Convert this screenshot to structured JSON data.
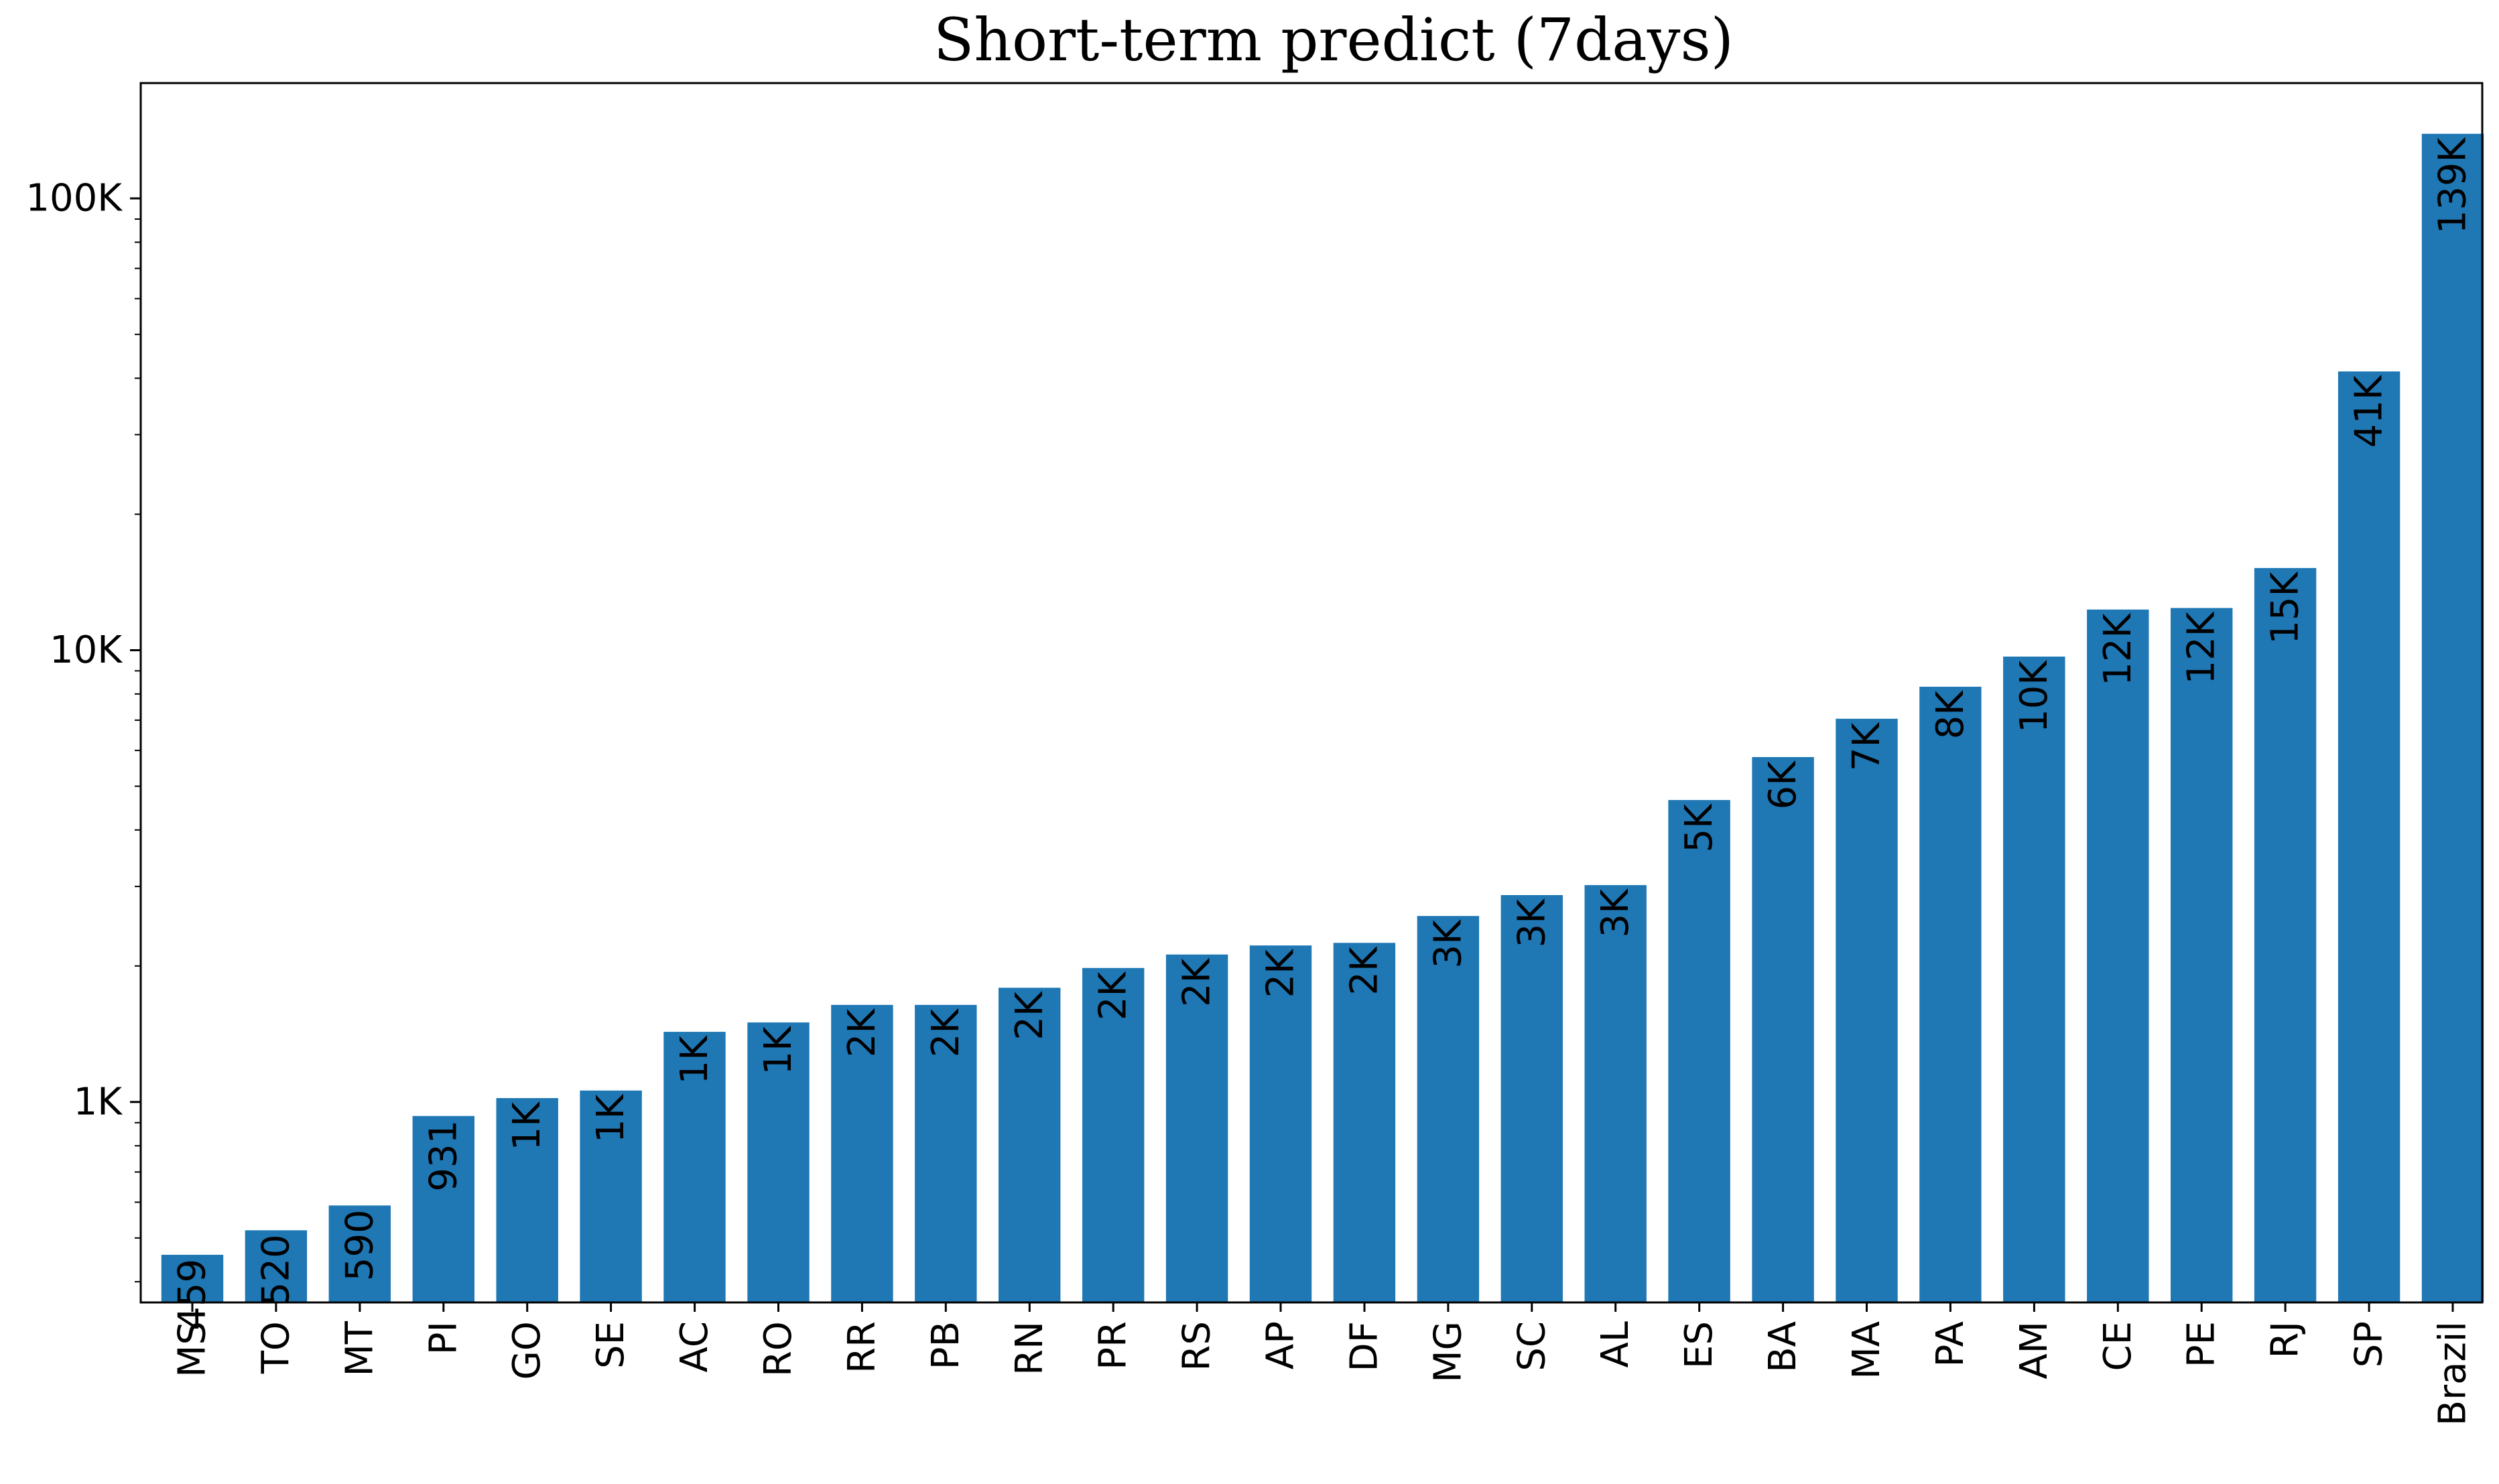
{
  "chart_data": {
    "type": "bar",
    "title": "Short-term predict (7days)",
    "xlabel": "",
    "ylabel": "",
    "yscale": "log",
    "ylim": [
      360,
      180000
    ],
    "yticks": [
      {
        "value": 1000,
        "label": "1K"
      },
      {
        "value": 10000,
        "label": "10K"
      },
      {
        "value": 100000,
        "label": "100K"
      }
    ],
    "grid": false,
    "bar_color": "#1f77b4",
    "categories": [
      "MS",
      "TO",
      "MT",
      "PI",
      "GO",
      "SE",
      "AC",
      "RO",
      "RR",
      "PB",
      "RN",
      "PR",
      "RS",
      "AP",
      "DF",
      "MG",
      "SC",
      "AL",
      "ES",
      "BA",
      "MA",
      "PA",
      "AM",
      "CE",
      "PE",
      "RJ",
      "SP",
      "Brazil"
    ],
    "values": [
      459,
      520,
      590,
      931,
      1020,
      1060,
      1430,
      1500,
      1640,
      1640,
      1790,
      1980,
      2120,
      2220,
      2250,
      2580,
      2870,
      3020,
      4660,
      5800,
      7050,
      8300,
      9680,
      12300,
      12400,
      15200,
      41400,
      139000
    ],
    "data_labels": [
      "459",
      "520",
      "590",
      "931",
      "1K",
      "1K",
      "1K",
      "1K",
      "2K",
      "2K",
      "2K",
      "2K",
      "2K",
      "2K",
      "2K",
      "3K",
      "3K",
      "3K",
      "5K",
      "6K",
      "7K",
      "8K",
      "10K",
      "12K",
      "12K",
      "15K",
      "41K",
      "139K"
    ]
  }
}
